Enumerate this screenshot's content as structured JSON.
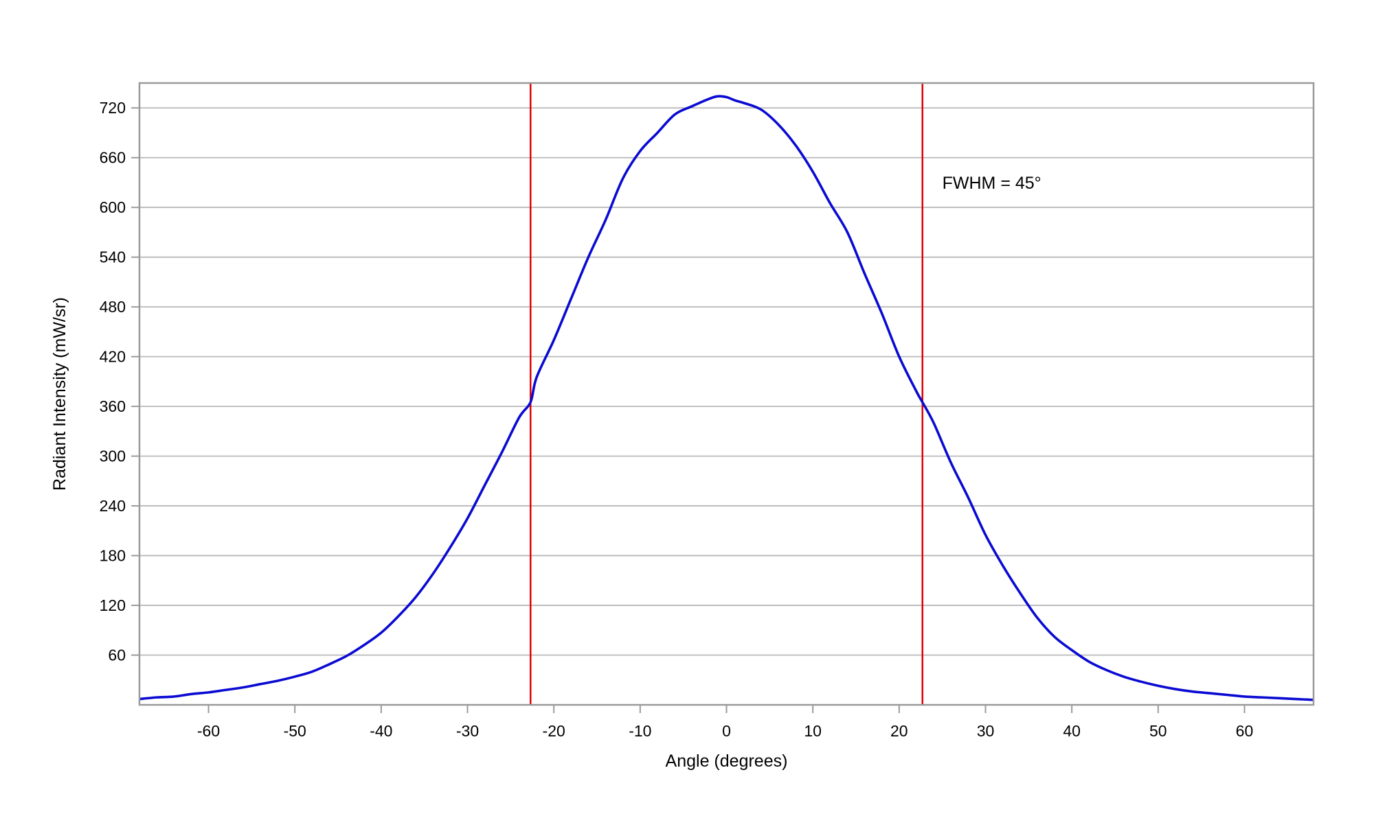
{
  "chart_data": {
    "type": "line",
    "title": "",
    "xlabel": "Angle (degrees)",
    "ylabel": "Radiant Intensity (mW/sr)",
    "xlim": [
      -68,
      68
    ],
    "ylim": [
      0,
      750
    ],
    "xticks": [
      -60,
      -50,
      -40,
      -30,
      -20,
      -10,
      0,
      10,
      20,
      30,
      40,
      50,
      60
    ],
    "yticks": [
      60,
      120,
      180,
      240,
      300,
      360,
      420,
      480,
      540,
      600,
      660,
      720
    ],
    "grid": "horizontal",
    "legend": "none",
    "series": [
      {
        "color": "#0a0ad2",
        "x": [
          -68,
          -66,
          -64,
          -62,
          -60,
          -58,
          -56,
          -54,
          -52,
          -50,
          -48,
          -46,
          -44,
          -42,
          -40,
          -38,
          -36,
          -34,
          -32,
          -30,
          -28,
          -26,
          -24,
          -22.7,
          -22,
          -20,
          -18,
          -16,
          -14,
          -12,
          -10,
          -8,
          -6,
          -4,
          -2,
          -1,
          0,
          1,
          2,
          4,
          6,
          8,
          10,
          12,
          14,
          16,
          18,
          20,
          22,
          22.7,
          24,
          26,
          28,
          30,
          32,
          34,
          36,
          38,
          40,
          42,
          44,
          46,
          48,
          50,
          52,
          54,
          56,
          58,
          60,
          62,
          64,
          66,
          68
        ],
        "y": [
          7,
          9,
          10,
          13,
          15,
          18,
          21,
          25,
          29,
          34,
          40,
          49,
          59,
          72,
          87,
          107,
          130,
          158,
          190,
          225,
          265,
          305,
          347,
          365,
          395,
          440,
          490,
          540,
          585,
          635,
          668,
          690,
          712,
          722,
          731,
          734,
          733,
          729,
          726,
          718,
          700,
          675,
          643,
          605,
          570,
          520,
          472,
          420,
          378,
          365,
          340,
          292,
          250,
          205,
          168,
          135,
          105,
          82,
          66,
          52,
          42,
          34,
          28,
          23,
          19,
          16,
          14,
          12,
          10,
          9,
          8,
          7,
          6
        ]
      }
    ],
    "annotations": [
      {
        "type": "vline",
        "x": -22.7,
        "color": "#e00000"
      },
      {
        "type": "vline",
        "x": 22.7,
        "color": "#e00000"
      },
      {
        "type": "text",
        "text": "FWHM = 45°",
        "x": 25,
        "y": 630
      }
    ]
  }
}
